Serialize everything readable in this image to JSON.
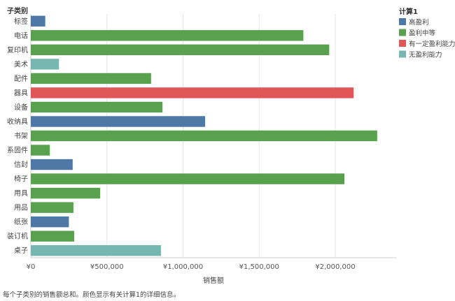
{
  "header": {
    "row_header": "子类别",
    "caption": "每个子类别的销售额总和。颜色显示有关计算1的详细信息。"
  },
  "legend": {
    "title": "计算1",
    "items": [
      {
        "label": "高盈利",
        "color": "#4e79a7"
      },
      {
        "label": "盈利中等",
        "color": "#59a14f"
      },
      {
        "label": "有一定盈利能力",
        "color": "#e15759"
      },
      {
        "label": "无盈利能力",
        "color": "#76b7b2"
      }
    ]
  },
  "chart_data": {
    "type": "bar",
    "orientation": "horizontal",
    "xlabel": "销售额",
    "xlim": [
      0,
      2400000
    ],
    "xticks": [
      0,
      500000,
      1000000,
      1500000,
      2000000
    ],
    "xtick_labels": [
      "¥0",
      "¥500,000",
      "¥1,000,000",
      "¥1,500,000",
      "¥2,000,000"
    ],
    "grid": true,
    "legend_position": "top-right",
    "categories": [
      "标签",
      "电话",
      "复印机",
      "美术",
      "配件",
      "器具",
      "设备",
      "收纳具",
      "书架",
      "系固件",
      "信封",
      "椅子",
      "用具",
      "用品",
      "纸张",
      "装订机",
      "桌子"
    ],
    "values": [
      95000,
      1790000,
      1960000,
      185000,
      790000,
      2120000,
      865000,
      1145000,
      2275000,
      125000,
      275000,
      2060000,
      455000,
      280000,
      250000,
      285000,
      855000
    ],
    "groups": [
      "高盈利",
      "盈利中等",
      "盈利中等",
      "无盈利能力",
      "盈利中等",
      "有一定盈利能力",
      "盈利中等",
      "高盈利",
      "盈利中等",
      "盈利中等",
      "高盈利",
      "盈利中等",
      "盈利中等",
      "盈利中等",
      "高盈利",
      "盈利中等",
      "无盈利能力"
    ]
  }
}
